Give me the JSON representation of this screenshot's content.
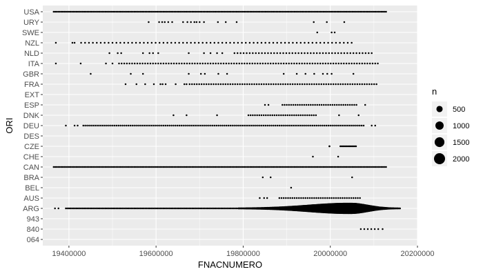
{
  "chart_data": {
    "type": "scatter",
    "title": "",
    "xlabel": "FNACNUMERO",
    "ylabel": "ORI",
    "xlim": [
      19340000,
      20200000
    ],
    "x_ticks": [
      19400000,
      19600000,
      19800000,
      20000000,
      20200000
    ],
    "x_tick_labels": [
      "19400000",
      "19600000",
      "19800000",
      "20000000",
      "20200000"
    ],
    "categories": [
      "064",
      "840",
      "943",
      "ARG",
      "AUS",
      "BEL",
      "BRA",
      "CAN",
      "CHE",
      "CZE",
      "DES",
      "DEU",
      "DNK",
      "ESP",
      "EXT",
      "FRA",
      "GBR",
      "ITA",
      "NLD",
      "NZL",
      "SWE",
      "URY",
      "USA"
    ],
    "grid": true,
    "background": "#ebebeb",
    "point_color": "#000000",
    "legend": {
      "title": "n",
      "placement": "right",
      "entries": [
        {
          "label": "500",
          "value": 500
        },
        {
          "label": "1000",
          "value": 1000
        },
        {
          "label": "1500",
          "value": 1500
        },
        {
          "label": "2000",
          "value": 2000
        }
      ]
    },
    "size_scale": {
      "domain": [
        1,
        2000
      ]
    },
    "series": [
      {
        "category": "USA",
        "ranges": [
          [
            19365000,
            20130000,
            3500
          ]
        ]
      },
      {
        "category": "URY",
        "points": [
          [
            19583000,
            1
          ],
          [
            19607000,
            1
          ],
          [
            19614000,
            1
          ],
          [
            19620000,
            1
          ],
          [
            19628000,
            1
          ],
          [
            19637000,
            1
          ],
          [
            19662000,
            1
          ],
          [
            19672000,
            1
          ],
          [
            19680000,
            1
          ],
          [
            19688000,
            1
          ],
          [
            19693000,
            1
          ],
          [
            19700000,
            1
          ],
          [
            19710000,
            1
          ],
          [
            19742000,
            1
          ],
          [
            19760000,
            1
          ],
          [
            19785000,
            1
          ],
          [
            19962000,
            1
          ],
          [
            19992000,
            1
          ],
          [
            20032000,
            1
          ]
        ]
      },
      {
        "category": "SWE",
        "points": [
          [
            19970000,
            1
          ],
          [
            20003000,
            1
          ],
          [
            20010000,
            1
          ]
        ]
      },
      {
        "category": "NZL",
        "points": [
          [
            19370000,
            1
          ],
          [
            19408000,
            1
          ],
          [
            19413000,
            1
          ],
          [
            19428000,
            1
          ]
        ],
        "ranges": [
          [
            19437000,
            20050000,
            9000
          ]
        ]
      },
      {
        "category": "NLD",
        "points": [
          [
            19493000,
            1
          ],
          [
            19512000,
            1
          ],
          [
            19520000,
            1
          ],
          [
            19570000,
            1
          ],
          [
            19585000,
            1
          ],
          [
            19593000,
            1
          ],
          [
            19605000,
            1
          ],
          [
            19675000,
            1
          ],
          [
            19710000,
            1
          ],
          [
            19725000,
            1
          ],
          [
            19740000,
            1
          ],
          [
            19752000,
            1
          ]
        ],
        "ranges": [
          [
            19780000,
            20100000,
            7000
          ]
        ]
      },
      {
        "category": "ITA",
        "points": [
          [
            19370000,
            1
          ],
          [
            19427000,
            1
          ],
          [
            19485000,
            1
          ],
          [
            19500000,
            1
          ]
        ],
        "ranges": [
          [
            19515000,
            20110000,
            6000
          ]
        ]
      },
      {
        "category": "GBR",
        "points": [
          [
            19450000,
            1
          ],
          [
            19542000,
            1
          ],
          [
            19570000,
            1
          ],
          [
            19675000,
            1
          ],
          [
            19703000,
            1
          ],
          [
            19712000,
            1
          ],
          [
            19743000,
            1
          ],
          [
            19763000,
            1
          ],
          [
            19893000,
            1
          ],
          [
            19923000,
            1
          ],
          [
            19943000,
            1
          ],
          [
            19963000,
            1
          ],
          [
            19983000,
            1
          ],
          [
            19993000,
            1
          ],
          [
            20003000,
            1
          ],
          [
            20053000,
            1
          ]
        ]
      },
      {
        "category": "FRA",
        "points": [
          [
            19530000,
            1
          ],
          [
            19555000,
            1
          ],
          [
            19575000,
            1
          ],
          [
            19595000,
            1
          ],
          [
            19610000,
            1
          ],
          [
            19615000,
            1
          ],
          [
            19622000,
            1
          ],
          [
            19645000,
            1
          ],
          [
            19665000,
            1
          ],
          [
            19670000,
            1
          ]
        ],
        "ranges": [
          [
            19677000,
            20110000,
            5500
          ]
        ]
      },
      {
        "category": "EXT",
        "points": []
      },
      {
        "category": "ESP",
        "points": [
          [
            19850000,
            1
          ],
          [
            19858000,
            1
          ],
          [
            20080000,
            1
          ]
        ],
        "ranges": [
          [
            19890000,
            20060000,
            5000
          ]
        ]
      },
      {
        "category": "DNK",
        "points": [
          [
            19640000,
            1
          ],
          [
            19670000,
            1
          ],
          [
            19740000,
            1
          ],
          [
            20020000,
            1
          ],
          [
            20065000,
            1
          ]
        ],
        "ranges": [
          [
            19812000,
            19970000,
            5000
          ]
        ]
      },
      {
        "category": "DEU",
        "points": [
          [
            19393000,
            1
          ],
          [
            19413000,
            1
          ],
          [
            19420000,
            1
          ],
          [
            20095000,
            1
          ],
          [
            20103000,
            1
          ]
        ],
        "ranges": [
          [
            19433000,
            20080000,
            4500
          ]
        ]
      },
      {
        "category": "DES",
        "points": []
      },
      {
        "category": "CZE",
        "points": [
          [
            19998000,
            3
          ]
        ],
        "ranges": [
          [
            20023000,
            20060000,
            3000
          ]
        ]
      },
      {
        "category": "CHE",
        "points": [
          [
            19960000,
            1
          ],
          [
            20018000,
            1
          ]
        ]
      },
      {
        "category": "CAN",
        "ranges": [
          [
            19365000,
            20130000,
            3500
          ]
        ]
      },
      {
        "category": "BRA",
        "points": [
          [
            19845000,
            1
          ],
          [
            19863000,
            1
          ],
          [
            20050000,
            1
          ]
        ]
      },
      {
        "category": "BEL",
        "points": [
          [
            19910000,
            1
          ]
        ]
      },
      {
        "category": "AUS",
        "points": [
          [
            19838000,
            1
          ],
          [
            19848000,
            1
          ],
          [
            19855000,
            1
          ]
        ],
        "ranges": [
          [
            19883000,
            20070000,
            5000
          ]
        ]
      },
      {
        "category": "ARG",
        "points": [
          [
            19368000,
            1
          ],
          [
            19376000,
            1
          ]
        ],
        "ranges": [
          [
            19393000,
            19790000,
            3500
          ]
        ],
        "curve": {
          "from": 19790000,
          "to": 20160000,
          "step": 2500,
          "peak_x": 20045000,
          "peak_n": 2100,
          "left_width": 95000,
          "right_width": 40000
        }
      },
      {
        "category": "943",
        "points": []
      },
      {
        "category": "840",
        "points": [
          [
            20070000,
            1
          ],
          [
            20078000,
            1
          ],
          [
            20086000,
            1
          ],
          [
            20094000,
            1
          ],
          [
            20102000,
            1
          ],
          [
            20110000,
            1
          ],
          [
            20120000,
            1
          ]
        ]
      },
      {
        "category": "064",
        "points": []
      }
    ]
  }
}
